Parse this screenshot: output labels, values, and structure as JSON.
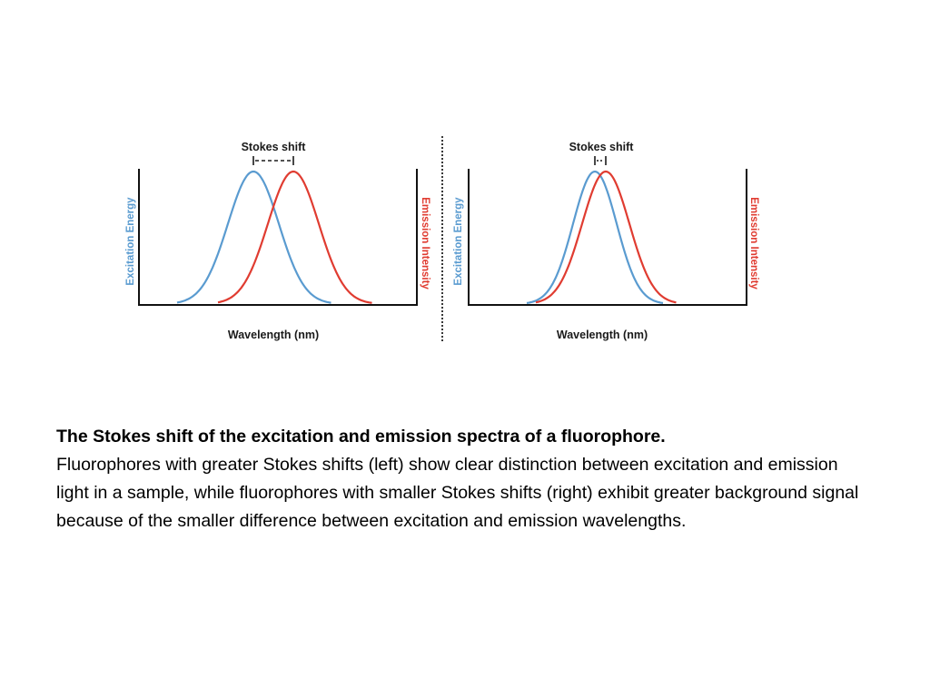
{
  "colors": {
    "excitation": "#5a9bd0",
    "emission": "#e03c31",
    "axis": "#111111",
    "text": "#000000"
  },
  "panels": [
    {
      "stokes_label": "Stokes shift",
      "xlabel": "Wavelength (nm)",
      "ylabel_left": "Excitation Energy",
      "ylabel_right": "Emission Intensity",
      "shift_size": "large"
    },
    {
      "stokes_label": "Stokes shift",
      "xlabel": "Wavelength (nm)",
      "ylabel_left": "Excitation Energy",
      "ylabel_right": "Emission Intensity",
      "shift_size": "small"
    }
  ],
  "caption": {
    "title": "The Stokes shift of the excitation and emission spectra of a fluorophore.",
    "body": "Fluorophores with greater Stokes shifts (left) show clear distinction between excitation and emission light in a sample, while fluorophores with smaller Stokes shifts (right) exhibit greater background signal because of the smaller difference between excitation and emission wavelengths."
  }
}
